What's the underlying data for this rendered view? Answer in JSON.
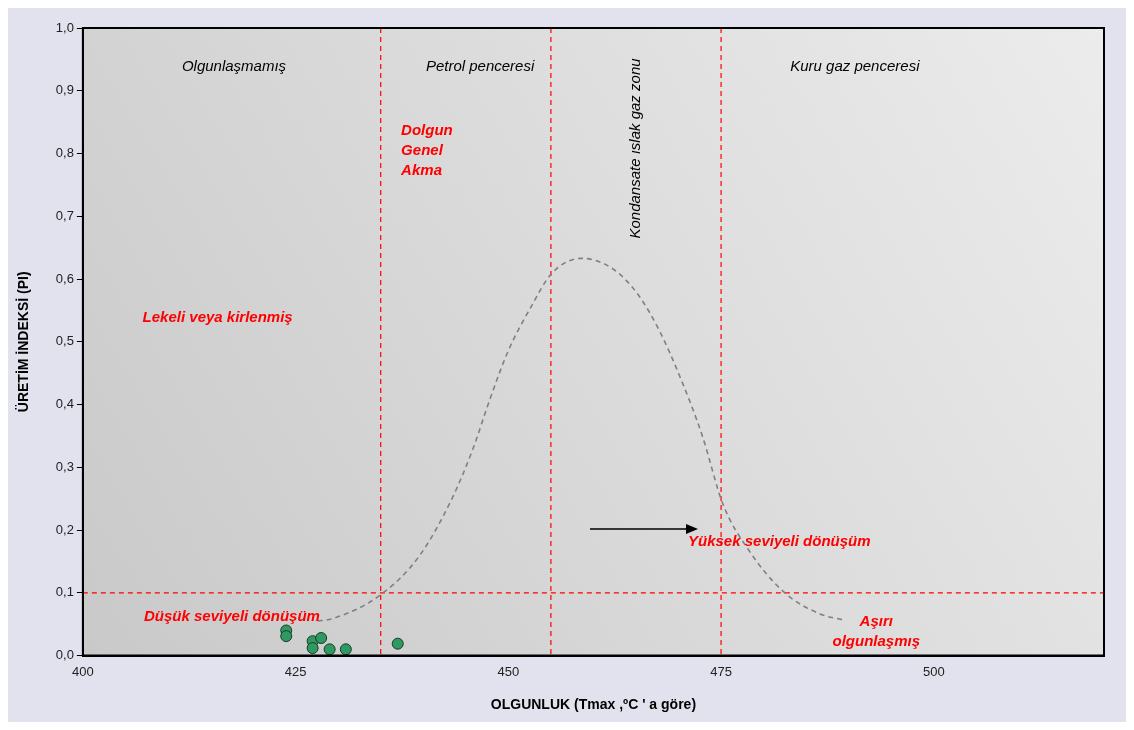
{
  "chart_data": {
    "type": "scatter",
    "xlabel": "OLGUNLUK (Tmax ,ºC ' a göre)",
    "ylabel": "ÜRETİM İNDEKSİ (PI)",
    "xlim": [
      400,
      520
    ],
    "xticks": [
      400,
      425,
      450,
      475,
      500
    ],
    "ylim": [
      0,
      1
    ],
    "yticks": [
      {
        "value": 0,
        "label": "0,0"
      },
      {
        "value": 0.1,
        "label": "0,1"
      },
      {
        "value": 0.2,
        "label": "0,2"
      },
      {
        "value": 0.3,
        "label": "0,3"
      },
      {
        "value": 0.4,
        "label": "0,4"
      },
      {
        "value": 0.5,
        "label": "0,5"
      },
      {
        "value": 0.6,
        "label": "0,6"
      },
      {
        "value": 0.7,
        "label": "0,7"
      },
      {
        "value": 0.8,
        "label": "0,8"
      },
      {
        "value": 0.9,
        "label": "0,9"
      },
      {
        "value": 1,
        "label": "1,0"
      }
    ],
    "grid": false,
    "legend": false,
    "marker": "circle",
    "series": [
      {
        "color": "#2e9a62",
        "x": [
          423.9,
          423.9,
          427.0,
          427.0,
          428.0,
          429.0,
          430.9,
          437.0
        ],
        "values": [
          0.04,
          0.031,
          0.023,
          0.012,
          0.028,
          0.01,
          0.01,
          0.019
        ]
      },
      {
        "type": "line",
        "color": "#808080",
        "line_style": "dashed",
        "marker": "none",
        "x": [
          427.6,
          429.4,
          435.1,
          439.5,
          443.3,
          445.8,
          447.9,
          450.0,
          452.6,
          455.1,
          458.6,
          462.3,
          465.2,
          467.7,
          470.3,
          472.8,
          475.2,
          478.2,
          482.4,
          486.7,
          489.3
        ],
        "values": [
          0.055,
          0.059,
          0.098,
          0.158,
          0.248,
          0.328,
          0.411,
          0.486,
          0.554,
          0.609,
          0.633,
          0.616,
          0.576,
          0.519,
          0.44,
          0.35,
          0.242,
          0.169,
          0.101,
          0.066,
          0.057
        ]
      }
    ],
    "ref_lines": [
      {
        "axis": "x",
        "value": 435,
        "color": "#ff0000",
        "line_style": "dashed"
      },
      {
        "axis": "x",
        "value": 455,
        "color": "#ff0000",
        "line_style": "dashed"
      },
      {
        "axis": "x",
        "value": 475,
        "color": "#ff0000",
        "line_style": "dashed"
      },
      {
        "axis": "y",
        "value": 0.1,
        "color": "#ff0000",
        "line_style": "dashed"
      }
    ],
    "annotations": [
      "Olgunlaşmamış",
      "Petrol penceresi",
      "Kondansate ıslak gaz zonu",
      "Kuru gaz penceresi",
      "Dolgun\nGenel\nAkma",
      "Lekeli veya kirlenmiş",
      "Düşük seviyeli dönüşüm",
      "Yüksek seviyeli dönüşüm",
      "Aşırı\nolgunlaşmış"
    ]
  }
}
